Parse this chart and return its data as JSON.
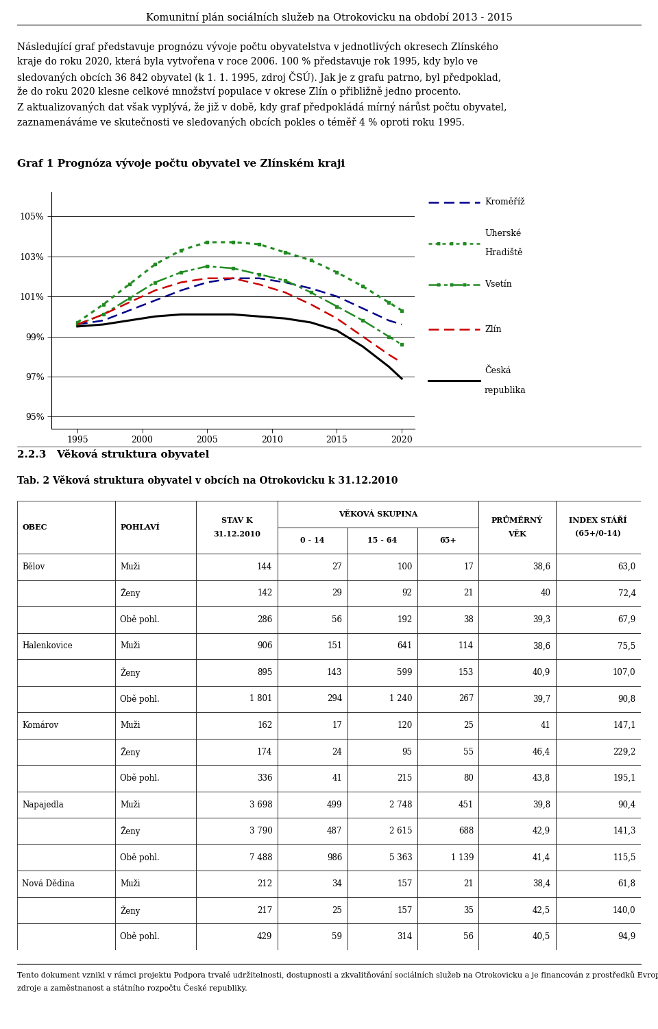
{
  "page_title": "Komunitní plán sociálních služeb na Otrokovicku na období 2013 - 2015",
  "paragraph_lines": [
    "Následující graf představuje prognózu vývoje počtu obyvatelstva v jednotlivých okresech Zlínského",
    "kraje do roku 2020, která byla vytvořena v roce 2006. 100 % představuje rok 1995, kdy bylo ve",
    "sledovaných obcích 36 842 obyvatel (k 1. 1. 1995, zdroj ČSÚ). Jak je z grafu patrno, byl předpoklad,",
    "že do roku 2020 klesne celkové množství populace v okrese Zlín o přibližně jedno procento.",
    "Z aktualizovaných dat však vyplývá, že již v době, kdy graf předpokládá mírný nárůst počtu obyvatel,",
    "zaznamenáváme ve skutečnosti ve sledovaných obcích pokles o téměř 4 % oproti roku 1995."
  ],
  "chart_title": "Graf 1 Prognóza vývoje počtu obyvatel ve Zlínském kraji",
  "x_ticks": [
    1995,
    2000,
    2005,
    2010,
    2015,
    2020
  ],
  "y_ticks": [
    0.95,
    0.97,
    0.99,
    1.01,
    1.03,
    1.05
  ],
  "y_tick_labels": [
    "95%",
    "97%",
    "99%",
    "101%",
    "103%",
    "105%"
  ],
  "y_lim": [
    0.944,
    1.062
  ],
  "x_lim": [
    1993,
    2021
  ],
  "series": [
    {
      "name": "Kroměříž",
      "color": "#00008B",
      "linestyle": "dashed",
      "linewidth": 1.8,
      "marker": null,
      "data_x": [
        1995,
        1997,
        1999,
        2001,
        2003,
        2005,
        2007,
        2009,
        2011,
        2013,
        2015,
        2017,
        2019,
        2020
      ],
      "data_y": [
        0.996,
        0.998,
        1.003,
        1.008,
        1.013,
        1.017,
        1.019,
        1.019,
        1.017,
        1.014,
        1.01,
        1.004,
        0.998,
        0.996
      ]
    },
    {
      "name": "Uherské\nHradiště",
      "color": "#228B22",
      "linestyle": "dotted",
      "linewidth": 2.2,
      "marker": "s",
      "data_x": [
        1995,
        1997,
        1999,
        2001,
        2003,
        2005,
        2007,
        2009,
        2011,
        2013,
        2015,
        2017,
        2019,
        2020
      ],
      "data_y": [
        0.997,
        1.006,
        1.016,
        1.026,
        1.033,
        1.037,
        1.037,
        1.036,
        1.032,
        1.028,
        1.022,
        1.015,
        1.007,
        1.003
      ]
    },
    {
      "name": "Vsetín",
      "color": "#228B22",
      "linestyle": "dashdot",
      "linewidth": 1.8,
      "marker": "s",
      "data_x": [
        1995,
        1997,
        1999,
        2001,
        2003,
        2005,
        2007,
        2009,
        2011,
        2013,
        2015,
        2017,
        2019,
        2020
      ],
      "data_y": [
        0.996,
        1.001,
        1.009,
        1.017,
        1.022,
        1.025,
        1.024,
        1.021,
        1.018,
        1.012,
        1.005,
        0.998,
        0.99,
        0.986
      ]
    },
    {
      "name": "Zlín",
      "color": "#CC0000",
      "linestyle": "dashed",
      "linewidth": 1.8,
      "marker": null,
      "data_x": [
        1995,
        1997,
        1999,
        2001,
        2003,
        2005,
        2007,
        2009,
        2011,
        2013,
        2015,
        2017,
        2019,
        2020
      ],
      "data_y": [
        0.996,
        1.001,
        1.007,
        1.013,
        1.017,
        1.019,
        1.019,
        1.016,
        1.012,
        1.006,
        0.999,
        0.99,
        0.981,
        0.977
      ]
    },
    {
      "name": "Česká\nrepublika",
      "color": "#000000",
      "linestyle": "solid",
      "linewidth": 2.2,
      "marker": null,
      "data_x": [
        1995,
        1997,
        1999,
        2001,
        2003,
        2005,
        2007,
        2009,
        2011,
        2013,
        2015,
        2017,
        2019,
        2020
      ],
      "data_y": [
        0.995,
        0.996,
        0.998,
        1.0,
        1.001,
        1.001,
        1.001,
        1.0,
        0.999,
        0.997,
        0.993,
        0.985,
        0.975,
        0.969
      ]
    }
  ],
  "legend_items": [
    {
      "name": "Kroměříž",
      "color": "#00008B",
      "linestyle": "dashed",
      "marker": null
    },
    {
      "name": "Uherské\nHradiště",
      "color": "#228B22",
      "linestyle": "dotted",
      "marker": "s"
    },
    {
      "name": "Vsetín",
      "color": "#228B22",
      "linestyle": "dashdot",
      "marker": "s"
    },
    {
      "name": "Zlín",
      "color": "#CC0000",
      "linestyle": "dashed",
      "marker": null
    },
    {
      "name": "Česká\nrepublika",
      "color": "#000000",
      "linestyle": "solid",
      "marker": null
    }
  ],
  "section_title": "2.2.3   Věková struktura obyvatel",
  "table_title": "Tab. 2 Věková struktura obyvatel v obcích na Otrokovicku k 31.12.2010",
  "col_widths": [
    0.115,
    0.095,
    0.095,
    0.082,
    0.082,
    0.072,
    0.09,
    0.1
  ],
  "table_data": [
    [
      "Bělov",
      "Muži",
      "144",
      "27",
      "100",
      "17",
      "38,6",
      "63,0"
    ],
    [
      "",
      "Ženy",
      "142",
      "29",
      "92",
      "21",
      "40",
      "72,4"
    ],
    [
      "",
      "Obě pohl.",
      "286",
      "56",
      "192",
      "38",
      "39,3",
      "67,9"
    ],
    [
      "Halenkovice",
      "Muži",
      "906",
      "151",
      "641",
      "114",
      "38,6",
      "75,5"
    ],
    [
      "",
      "Ženy",
      "895",
      "143",
      "599",
      "153",
      "40,9",
      "107,0"
    ],
    [
      "",
      "Obě pohl.",
      "1 801",
      "294",
      "1 240",
      "267",
      "39,7",
      "90,8"
    ],
    [
      "Komárov",
      "Muži",
      "162",
      "17",
      "120",
      "25",
      "41",
      "147,1"
    ],
    [
      "",
      "Ženy",
      "174",
      "24",
      "95",
      "55",
      "46,4",
      "229,2"
    ],
    [
      "",
      "Obě pohl.",
      "336",
      "41",
      "215",
      "80",
      "43,8",
      "195,1"
    ],
    [
      "Napajedla",
      "Muži",
      "3 698",
      "499",
      "2 748",
      "451",
      "39,8",
      "90,4"
    ],
    [
      "",
      "Ženy",
      "3 790",
      "487",
      "2 615",
      "688",
      "42,9",
      "141,3"
    ],
    [
      "",
      "Obě pohl.",
      "7 488",
      "986",
      "5 363",
      "1 139",
      "41,4",
      "115,5"
    ],
    [
      "Nová Dědina",
      "Muži",
      "212",
      "34",
      "157",
      "21",
      "38,4",
      "61,8"
    ],
    [
      "",
      "Ženy",
      "217",
      "25",
      "157",
      "35",
      "42,5",
      "140,0"
    ],
    [
      "",
      "Obě pohl.",
      "429",
      "59",
      "314",
      "56",
      "40,5",
      "94,9"
    ]
  ],
  "footer_text": "Tento dokument vznikl v rámci projektu Podpora trvalé udržitelnosti, dostupnosti a zkvalitňování sociálních služeb na Otrokovicku a je financován z prostředků Evropského sociálního fondu prostřednictvím Operačního programu Lidské\nzdroje a zaměstnanost a státního rozpočtu České republiky.",
  "bg_color": "#ffffff",
  "text_color": "#000000"
}
